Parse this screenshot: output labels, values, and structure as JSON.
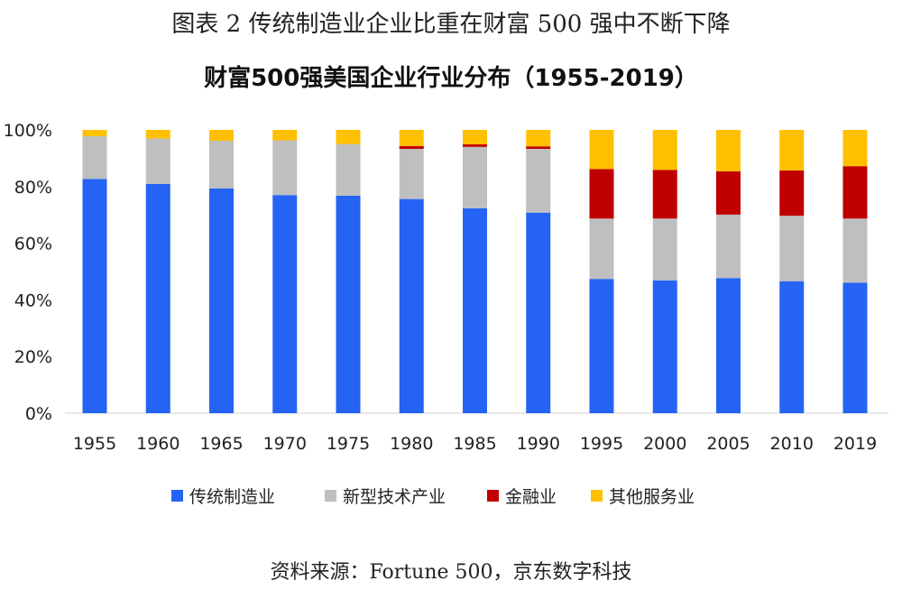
{
  "title": "图表 2 传统制造业企业比重在财富 500 强中不断下降",
  "source": "资料来源：Fortune 500，京东数字科技",
  "chart_data": {
    "type": "bar",
    "stacked": true,
    "title": "财富500强美国企业行业分布（1955-2019）",
    "categories": [
      "1955",
      "1960",
      "1965",
      "1970",
      "1975",
      "1980",
      "1985",
      "1990",
      "1995",
      "2000",
      "2005",
      "2010",
      "2019"
    ],
    "series": [
      {
        "name": "传统制造业",
        "color": "#2563F5",
        "values": [
          82.7,
          80.9,
          79.3,
          77.0,
          76.8,
          75.6,
          72.3,
          70.8,
          47.4,
          46.9,
          47.7,
          46.6,
          46.1
        ]
      },
      {
        "name": "新型技术产业",
        "color": "#BFBFBF",
        "values": [
          15.1,
          16.1,
          16.9,
          19.3,
          18.2,
          17.7,
          21.7,
          22.5,
          21.3,
          21.8,
          22.4,
          23.1,
          22.6
        ]
      },
      {
        "name": "金融业",
        "color": "#C00000",
        "values": [
          0,
          0,
          0,
          0,
          0,
          1.0,
          0.9,
          0.9,
          17.5,
          17.2,
          15.3,
          16.0,
          18.5
        ]
      },
      {
        "name": "其他服务业",
        "color": "#FFC000",
        "values": [
          2.2,
          3.0,
          3.8,
          3.7,
          5.0,
          5.7,
          5.1,
          5.8,
          13.8,
          14.1,
          14.6,
          14.3,
          12.8
        ]
      }
    ],
    "yticks": [
      "0%",
      "20%",
      "40%",
      "60%",
      "80%",
      "100%"
    ],
    "ylim": [
      0,
      100
    ],
    "grid": false,
    "legend": "bottom"
  }
}
